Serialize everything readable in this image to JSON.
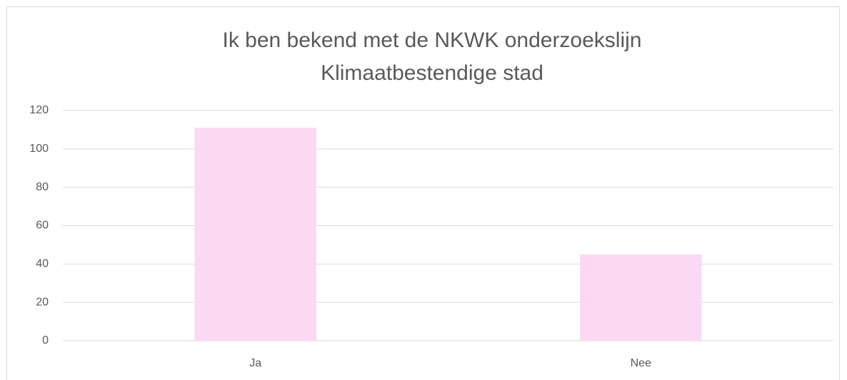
{
  "chart_data": {
    "type": "bar",
    "title": [
      "Ik ben bekend met de NKWK onderzoekslijn",
      "Klimaatbestendige stad"
    ],
    "categories": [
      "Ja",
      "Nee"
    ],
    "values": [
      111,
      45
    ],
    "color": "#fcd9f3",
    "ylim": [
      0,
      120
    ],
    "yticks": [
      0,
      20,
      40,
      60,
      80,
      100,
      120
    ],
    "grid": true
  }
}
